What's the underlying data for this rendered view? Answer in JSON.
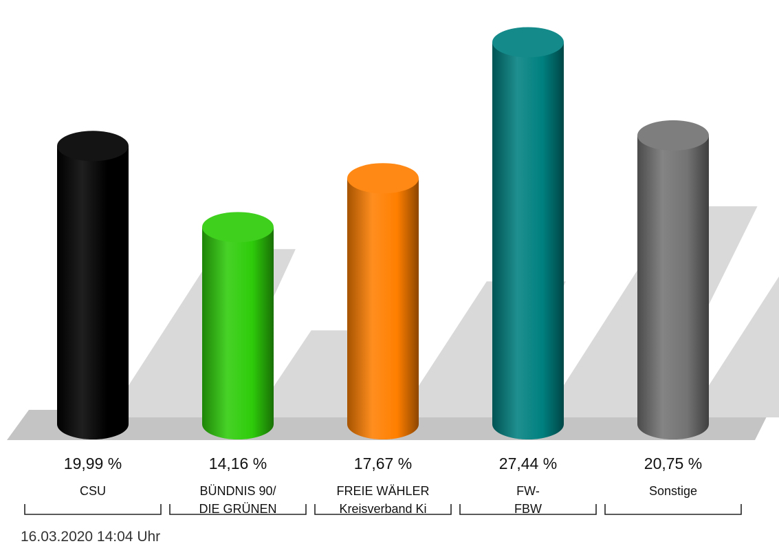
{
  "chart_data": {
    "type": "bar",
    "categories": [
      [
        "CSU"
      ],
      [
        "BÜNDNIS 90/",
        "DIE GRÜNEN"
      ],
      [
        "FREIE WÄHLER",
        "Kreisverband Ki"
      ],
      [
        "FW-",
        "FBW"
      ],
      [
        "Sonstige"
      ]
    ],
    "values": [
      19.99,
      14.16,
      17.67,
      27.44,
      20.75
    ],
    "value_labels": [
      "19,99 %",
      "14,16 %",
      "17,67 %",
      "27,44 %",
      "20,75 %"
    ],
    "colors": [
      "#000000",
      "#2ecc0a",
      "#ff7f00",
      "#008080",
      "#737373"
    ],
    "ylim": [
      0,
      28.5
    ],
    "title": "",
    "xlabel": "",
    "ylabel": "",
    "grid": false
  },
  "footer": {
    "timestamp": "16.03.2020 14:04 Uhr"
  }
}
